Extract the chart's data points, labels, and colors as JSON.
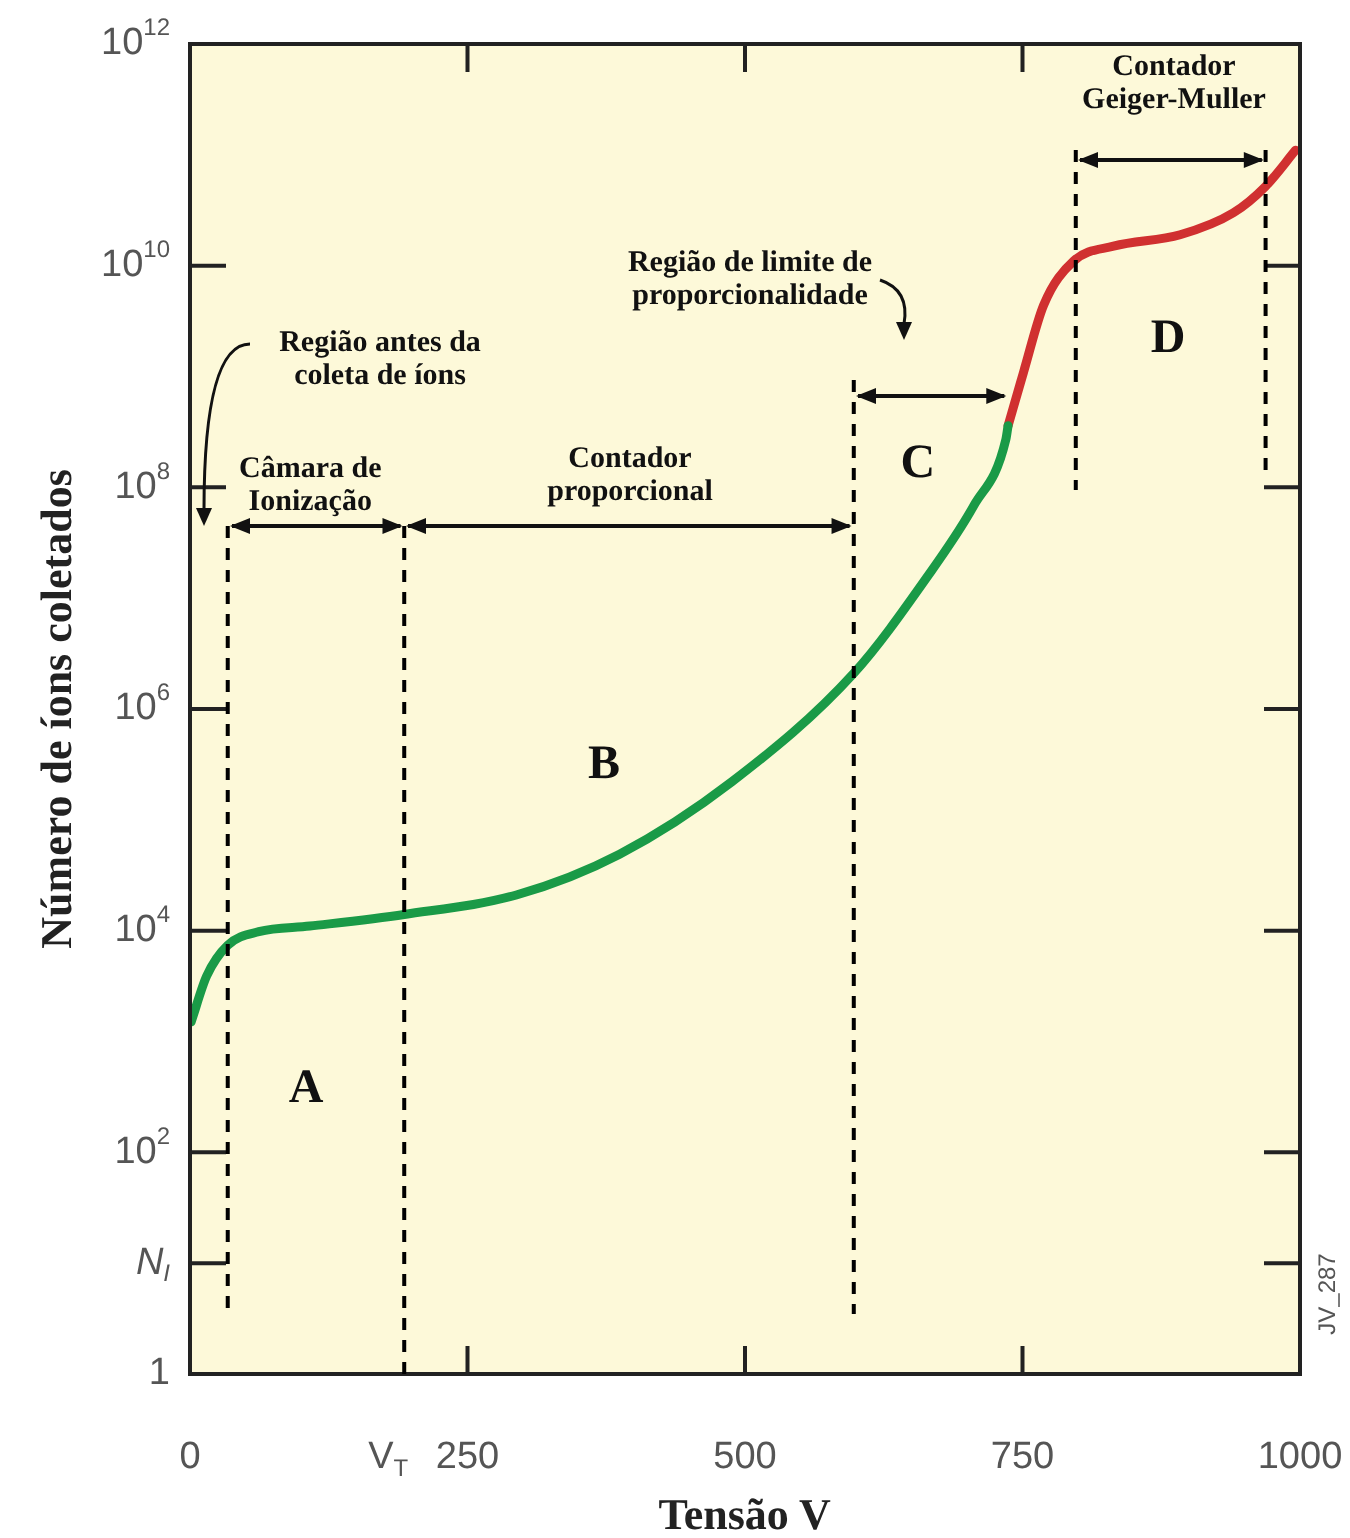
{
  "chart_data": {
    "type": "line",
    "xlabel": "Tensão V",
    "ylabel": "Número de íons coletados",
    "log": "y",
    "grid": false,
    "legend": false,
    "xlim": [
      0,
      1000
    ],
    "xticks": [
      0,
      {
        "value": 193,
        "label": "V$_{T}$"
      },
      250,
      500,
      750,
      1000
    ],
    "ylim": [
      1,
      1000000000000
    ],
    "yticks": [
      1,
      {
        "value": 10,
        "label": "N$_{I}$"
      },
      {
        "value": 100,
        "label": "10$^{2}$"
      },
      {
        "value": 10000,
        "label": "10$^{4}$"
      },
      {
        "value": 1000000,
        "label": "10$^{6}$"
      },
      {
        "value": 100000000,
        "label": "10$^{8}$"
      },
      {
        "value": 10000000000,
        "label": "10$^{10}$"
      },
      {
        "value": 1000000000000,
        "label": "10$^{12}$"
      }
    ],
    "series": [
      {
        "color": "#1a9a47",
        "x": [
          1,
          15,
          34,
          62,
          108,
          193,
          294,
          387,
          488,
          598,
          663,
          706,
          735,
          737
        ],
        "values": [
          1500,
          3900,
          7400,
          9800,
          11000,
          14000,
          21000,
          49000,
          220000,
          2100000,
          15000000,
          68000000,
          270000000,
          360000000
        ]
      },
      {
        "color": "#d03030",
        "x": [
          737,
          751,
          769,
          796,
          832,
          892,
          940,
          969,
          996
        ],
        "values": [
          360000000,
          1100000000,
          4400000000,
          11000000000,
          15000000000,
          19000000000,
          30000000000,
          52000000000,
          110000000000
        ]
      }
    ],
    "ref_lines": [
      {
        "axis": "x",
        "value": 34,
        "line_style": "dashed",
        "color": "#000000"
      },
      {
        "axis": "x",
        "value": 193,
        "line_style": "dashed",
        "color": "#000000"
      },
      {
        "axis": "x",
        "value": 598,
        "line_style": "dashed",
        "color": "#000000"
      },
      {
        "axis": "x",
        "value": 798,
        "line_style": "dashed",
        "color": "#000000"
      },
      {
        "axis": "x",
        "value": 969,
        "line_style": "dashed",
        "color": "#000000"
      }
    ],
    "annotations": [
      "Região antes da\ncoleta de íons",
      {
        "text": "Câmara de\nIonização",
        "x": 193,
        "y": 45000000
      },
      "Contador\nproporcional",
      "Região de limite de\nproporcionalidade",
      "Contador\nGeiger-Muller",
      "A",
      "B",
      {
        "text": "C",
        "x": 744,
        "y": 680000000
      },
      "D",
      "JV_287"
    ]
  }
}
